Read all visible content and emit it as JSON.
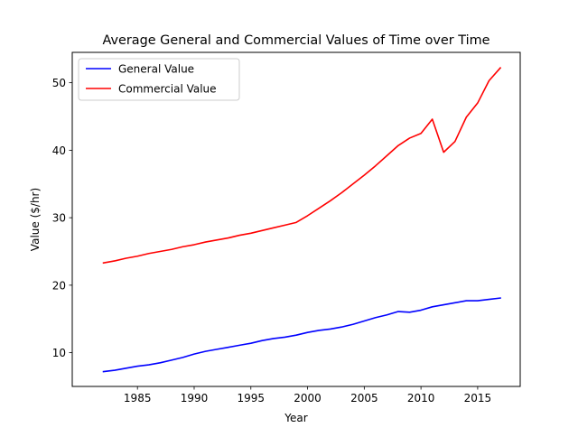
{
  "chart_data": {
    "type": "line",
    "title": "Average General and Commercial Values of Time over Time",
    "xlabel": "Year",
    "ylabel": "Value ($/hr)",
    "xlim": [
      1979.25,
      2018.75
    ],
    "ylim": [
      5.0,
      54.5
    ],
    "xticks": [
      1985,
      1990,
      1995,
      2000,
      2005,
      2010,
      2015
    ],
    "yticks": [
      10,
      20,
      30,
      40,
      50
    ],
    "grid": false,
    "legend_position": "upper-left",
    "x": [
      1982,
      1983,
      1984,
      1985,
      1986,
      1987,
      1988,
      1989,
      1990,
      1991,
      1992,
      1993,
      1994,
      1995,
      1996,
      1997,
      1998,
      1999,
      2000,
      2001,
      2002,
      2003,
      2004,
      2005,
      2006,
      2007,
      2008,
      2009,
      2010,
      2011,
      2012,
      2013,
      2014,
      2015,
      2016,
      2017
    ],
    "series": [
      {
        "name": "General Value",
        "color": "#0000ff",
        "values": [
          7.2,
          7.4,
          7.7,
          8.0,
          8.2,
          8.5,
          8.9,
          9.3,
          9.8,
          10.2,
          10.5,
          10.8,
          11.1,
          11.4,
          11.8,
          12.1,
          12.3,
          12.6,
          13.0,
          13.3,
          13.5,
          13.8,
          14.2,
          14.7,
          15.2,
          15.6,
          16.1,
          16.0,
          16.3,
          16.8,
          17.1,
          17.4,
          17.7,
          17.7,
          17.9,
          18.1
        ]
      },
      {
        "name": "Commercial Value",
        "color": "#ff0000",
        "values": [
          23.3,
          23.6,
          24.0,
          24.3,
          24.7,
          25.0,
          25.3,
          25.7,
          26.0,
          26.4,
          26.7,
          27.0,
          27.4,
          27.7,
          28.1,
          28.5,
          28.9,
          29.3,
          30.3,
          31.4,
          32.5,
          33.7,
          35.0,
          36.3,
          37.7,
          39.2,
          40.7,
          41.8,
          42.5,
          44.6,
          39.7,
          41.3,
          44.9,
          47.0,
          50.3,
          52.2
        ]
      }
    ]
  }
}
